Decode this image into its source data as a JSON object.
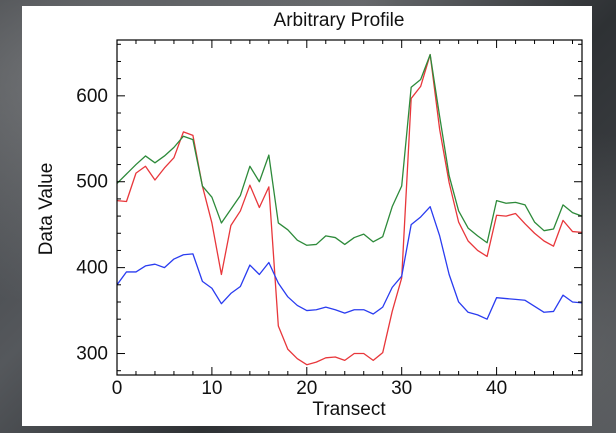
{
  "chart_data": {
    "type": "line",
    "title": "Arbitrary Profile",
    "xlabel": "Transect",
    "ylabel": "Data Value",
    "xlim": [
      0,
      49
    ],
    "ylim": [
      275,
      665
    ],
    "xticks": [
      0,
      10,
      20,
      30,
      40
    ],
    "yticks": [
      300,
      400,
      500,
      600
    ],
    "grid": false,
    "legend": "none",
    "x": [
      0,
      1,
      2,
      3,
      4,
      5,
      6,
      7,
      8,
      9,
      10,
      11,
      12,
      13,
      14,
      15,
      16,
      17,
      18,
      19,
      20,
      21,
      22,
      23,
      24,
      25,
      26,
      27,
      28,
      29,
      30,
      31,
      32,
      33,
      34,
      35,
      36,
      37,
      38,
      39,
      40,
      41,
      42,
      43,
      44,
      45,
      46,
      47,
      48,
      49
    ],
    "series": [
      {
        "color": "#e8373b",
        "values": [
          478,
          477,
          510,
          518,
          502,
          516,
          528,
          558,
          554,
          495,
          452,
          392,
          449,
          466,
          496,
          470,
          494,
          332,
          305,
          294,
          287,
          290,
          295,
          296,
          292,
          300,
          300,
          292,
          301,
          349,
          388,
          597,
          611,
          648,
          561,
          499,
          453,
          431,
          420,
          413,
          461,
          460,
          463,
          451,
          440,
          431,
          425,
          455,
          442,
          441
        ]
      },
      {
        "color": "#2d8a3a",
        "values": [
          498,
          509,
          520,
          530,
          522,
          530,
          540,
          553,
          549,
          495,
          482,
          452,
          468,
          484,
          518,
          500,
          531,
          452,
          444,
          432,
          426,
          427,
          437,
          435,
          427,
          435,
          439,
          430,
          436,
          471,
          495,
          610,
          619,
          648,
          576,
          507,
          466,
          446,
          437,
          429,
          478,
          475,
          476,
          473,
          453,
          443,
          445,
          473,
          464,
          460
        ]
      },
      {
        "color": "#2a3cf0",
        "values": [
          380,
          395,
          395,
          402,
          404,
          400,
          410,
          415,
          416,
          384,
          376,
          358,
          370,
          378,
          403,
          392,
          406,
          382,
          366,
          356,
          350,
          351,
          354,
          351,
          347,
          351,
          351,
          346,
          354,
          377,
          390,
          450,
          459,
          471,
          437,
          392,
          360,
          348,
          345,
          340,
          365,
          364,
          363,
          362,
          355,
          348,
          349,
          368,
          360,
          359
        ]
      }
    ]
  }
}
